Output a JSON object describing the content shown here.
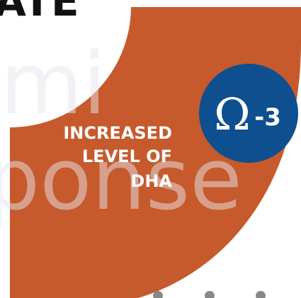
{
  "header_text": "ATE",
  "watermark": [
    "mi",
    "ponse"
  ],
  "label_lines": [
    "INCREASED",
    "LEVEL OF",
    "DHA"
  ],
  "badge": {
    "symbol": "Ω",
    "suffix": "-3"
  }
}
